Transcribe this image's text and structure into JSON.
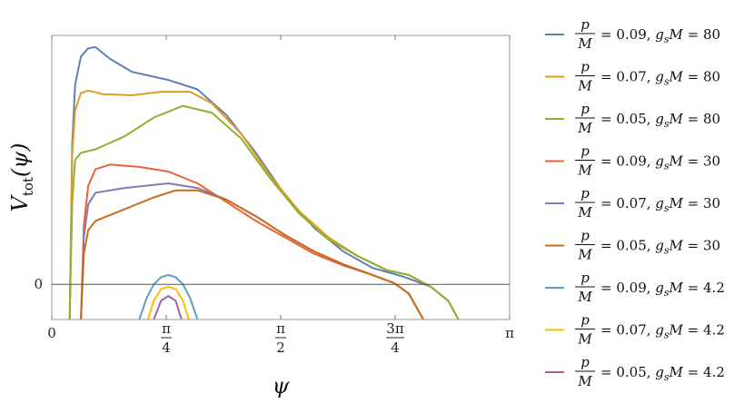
{
  "chart_data": {
    "type": "line",
    "title": "",
    "xlabel": "ψ",
    "ylabel": "V_tot(ψ)",
    "xlim": [
      0,
      3.1416
    ],
    "ylim": [
      -0.15,
      1.06
    ],
    "x_ticks": [
      {
        "value": 0,
        "label": "0"
      },
      {
        "value": 0.7854,
        "label": "π/4"
      },
      {
        "value": 1.5708,
        "label": "π/2"
      },
      {
        "value": 2.3562,
        "label": "3π/4"
      },
      {
        "value": 3.1416,
        "label": "π"
      }
    ],
    "y_ticks": [
      {
        "value": 0,
        "label": "0"
      }
    ],
    "zero_line": true,
    "grid": false,
    "legend_position": "right",
    "series": [
      {
        "name": "p/M = 0.09,  g_sM = 80",
        "color": "#5e81b5",
        "points": [
          [
            0.123,
            -0.15
          ],
          [
            0.14,
            0.6
          ],
          [
            0.16,
            0.85
          ],
          [
            0.2,
            0.97
          ],
          [
            0.25,
            1.005
          ],
          [
            0.3,
            1.01
          ],
          [
            0.4,
            0.96
          ],
          [
            0.55,
            0.905
          ],
          [
            0.8,
            0.87
          ],
          [
            1.0,
            0.83
          ],
          [
            1.2,
            0.72
          ],
          [
            1.4,
            0.56
          ],
          [
            1.6,
            0.38
          ],
          [
            1.8,
            0.24
          ],
          [
            2.0,
            0.14
          ],
          [
            2.2,
            0.07
          ],
          [
            2.4,
            0.035
          ],
          [
            2.6,
            -0.01
          ],
          [
            2.72,
            -0.07
          ],
          [
            2.79,
            -0.15
          ]
        ]
      },
      {
        "name": "p/M = 0.07,  g_sM = 80",
        "color": "#e19c24",
        "points": [
          [
            0.123,
            -0.15
          ],
          [
            0.14,
            0.55
          ],
          [
            0.16,
            0.74
          ],
          [
            0.2,
            0.815
          ],
          [
            0.25,
            0.825
          ],
          [
            0.35,
            0.81
          ],
          [
            0.55,
            0.805
          ],
          [
            0.75,
            0.82
          ],
          [
            0.95,
            0.82
          ],
          [
            1.1,
            0.77
          ],
          [
            1.3,
            0.64
          ],
          [
            1.5,
            0.46
          ],
          [
            1.7,
            0.31
          ],
          [
            1.9,
            0.2
          ],
          [
            2.1,
            0.12
          ],
          [
            2.3,
            0.06
          ],
          [
            2.45,
            0.04
          ],
          [
            2.6,
            -0.01
          ],
          [
            2.72,
            -0.07
          ],
          [
            2.79,
            -0.15
          ]
        ]
      },
      {
        "name": "p/M = 0.05,  g_sM = 80",
        "color": "#8fb032",
        "points": [
          [
            0.123,
            -0.15
          ],
          [
            0.14,
            0.35
          ],
          [
            0.16,
            0.53
          ],
          [
            0.2,
            0.56
          ],
          [
            0.3,
            0.575
          ],
          [
            0.5,
            0.63
          ],
          [
            0.7,
            0.71
          ],
          [
            0.9,
            0.76
          ],
          [
            1.1,
            0.73
          ],
          [
            1.3,
            0.62
          ],
          [
            1.5,
            0.45
          ],
          [
            1.7,
            0.3
          ],
          [
            1.9,
            0.19
          ],
          [
            2.1,
            0.12
          ],
          [
            2.3,
            0.06
          ],
          [
            2.45,
            0.04
          ],
          [
            2.6,
            -0.01
          ],
          [
            2.72,
            -0.07
          ],
          [
            2.79,
            -0.15
          ]
        ]
      },
      {
        "name": "p/M = 0.09,  g_sM = 30",
        "color": "#eb6235",
        "points": [
          [
            0.2,
            -0.15
          ],
          [
            0.22,
            0.25
          ],
          [
            0.25,
            0.42
          ],
          [
            0.3,
            0.49
          ],
          [
            0.4,
            0.51
          ],
          [
            0.6,
            0.5
          ],
          [
            0.8,
            0.48
          ],
          [
            1.0,
            0.43
          ],
          [
            1.2,
            0.35
          ],
          [
            1.4,
            0.27
          ],
          [
            1.6,
            0.2
          ],
          [
            1.8,
            0.13
          ],
          [
            2.0,
            0.08
          ],
          [
            2.2,
            0.04
          ],
          [
            2.35,
            0.005
          ],
          [
            2.45,
            -0.04
          ],
          [
            2.55,
            -0.15
          ]
        ]
      },
      {
        "name": "p/M = 0.07,  g_sM = 30",
        "color": "#8778b3",
        "points": [
          [
            0.2,
            -0.15
          ],
          [
            0.22,
            0.2
          ],
          [
            0.25,
            0.34
          ],
          [
            0.3,
            0.39
          ],
          [
            0.5,
            0.41
          ],
          [
            0.8,
            0.43
          ],
          [
            1.0,
            0.41
          ],
          [
            1.2,
            0.36
          ],
          [
            1.4,
            0.29
          ],
          [
            1.6,
            0.21
          ],
          [
            1.8,
            0.14
          ],
          [
            2.0,
            0.085
          ],
          [
            2.2,
            0.04
          ],
          [
            2.35,
            0.005
          ],
          [
            2.45,
            -0.04
          ],
          [
            2.55,
            -0.15
          ]
        ]
      },
      {
        "name": "p/M = 0.05,  g_sM = 30",
        "color": "#c56e1a",
        "points": [
          [
            0.2,
            -0.15
          ],
          [
            0.22,
            0.13
          ],
          [
            0.25,
            0.23
          ],
          [
            0.3,
            0.27
          ],
          [
            0.5,
            0.32
          ],
          [
            0.7,
            0.37
          ],
          [
            0.85,
            0.4
          ],
          [
            1.0,
            0.4
          ],
          [
            1.2,
            0.36
          ],
          [
            1.4,
            0.29
          ],
          [
            1.6,
            0.21
          ],
          [
            1.8,
            0.14
          ],
          [
            2.0,
            0.085
          ],
          [
            2.2,
            0.04
          ],
          [
            2.35,
            0.005
          ],
          [
            2.45,
            -0.04
          ],
          [
            2.55,
            -0.15
          ]
        ]
      },
      {
        "name": "p/M = 0.09,  g_sM = 4.2",
        "color": "#5d9ec7",
        "points": [
          [
            0.6,
            -0.15
          ],
          [
            0.65,
            -0.06
          ],
          [
            0.7,
            0.0
          ],
          [
            0.75,
            0.03
          ],
          [
            0.8,
            0.04
          ],
          [
            0.85,
            0.03
          ],
          [
            0.9,
            0.0
          ],
          [
            0.95,
            -0.06
          ],
          [
            1.0,
            -0.15
          ]
        ]
      },
      {
        "name": "p/M = 0.07,  g_sM = 4.2",
        "color": "#ffbf00",
        "points": [
          [
            0.66,
            -0.15
          ],
          [
            0.7,
            -0.07
          ],
          [
            0.75,
            -0.02
          ],
          [
            0.8,
            -0.01
          ],
          [
            0.85,
            -0.02
          ],
          [
            0.9,
            -0.07
          ],
          [
            0.94,
            -0.15
          ]
        ]
      },
      {
        "name": "p/M = 0.05,  g_sM = 4.2",
        "color": "#a5609d",
        "points": [
          [
            0.7,
            -0.15
          ],
          [
            0.75,
            -0.07
          ],
          [
            0.8,
            -0.05
          ],
          [
            0.85,
            -0.07
          ],
          [
            0.89,
            -0.15
          ]
        ]
      }
    ]
  }
}
